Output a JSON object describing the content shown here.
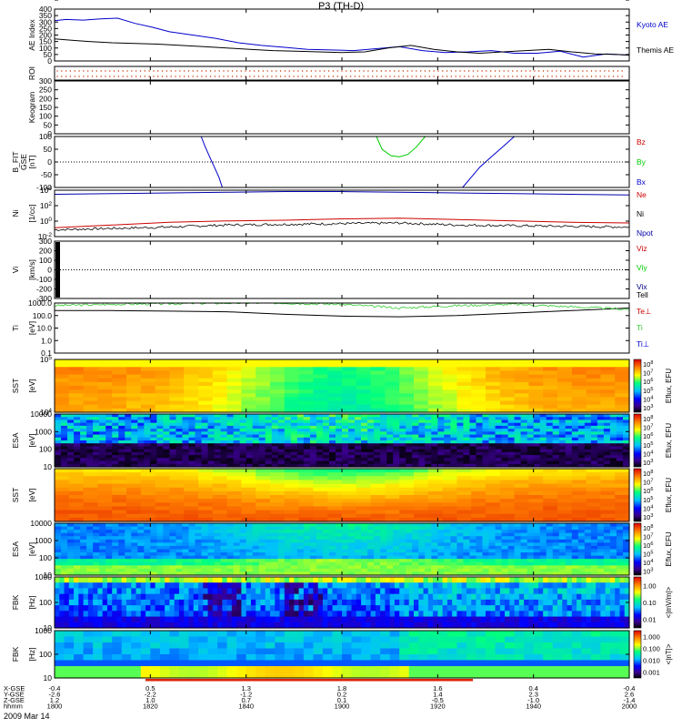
{
  "title": "P3 (TH-D)",
  "date": "2009 Mar 14",
  "colors": {
    "kyoto": "#0000cc",
    "themis": "#000000",
    "bz": "#cc0000",
    "by": "#00cc00",
    "bx": "#0000cc",
    "ne": "#cc0000",
    "ni": "#000000",
    "npot": "#0000aa",
    "te": "#000000",
    "ti": "#33cc33"
  },
  "chart_data": {
    "type": "line",
    "x": {
      "labels": [
        "1800",
        "1820",
        "1840",
        "1900",
        "1920",
        "1940",
        "2000"
      ]
    },
    "panels": [
      {
        "id": "ae",
        "ylabel": "AE Index",
        "ylim": [
          0,
          400
        ],
        "yticks": [
          "0",
          "50",
          "100",
          "150",
          "200",
          "250",
          "300",
          "350",
          "400"
        ],
        "legend": [
          "Kyoto AE",
          "Themis AE"
        ],
        "series": [
          {
            "name": "Kyoto AE",
            "color": "#0000cc",
            "x": [
              0.0,
              0.02,
              0.05,
              0.08,
              0.11,
              0.14,
              0.17,
              0.2,
              0.24,
              0.28,
              0.32,
              0.36,
              0.4,
              0.44,
              0.48,
              0.52,
              0.56,
              0.6,
              0.64,
              0.68,
              0.72,
              0.76,
              0.8,
              0.84,
              0.88,
              0.92,
              0.96,
              1.0
            ],
            "y": [
              310,
              320,
              315,
              325,
              330,
              290,
              260,
              225,
              200,
              175,
              140,
              120,
              105,
              90,
              85,
              80,
              95,
              110,
              80,
              65,
              70,
              80,
              60,
              60,
              75,
              30,
              55,
              45
            ]
          },
          {
            "name": "Themis AE",
            "color": "#000000",
            "x": [
              0.0,
              0.03,
              0.06,
              0.1,
              0.14,
              0.18,
              0.22,
              0.26,
              0.3,
              0.34,
              0.38,
              0.42,
              0.46,
              0.5,
              0.54,
              0.58,
              0.62,
              0.66,
              0.7,
              0.74,
              0.78,
              0.82,
              0.86,
              0.9,
              0.94,
              0.98,
              1.0
            ],
            "y": [
              170,
              160,
              150,
              140,
              135,
              130,
              120,
              110,
              100,
              90,
              80,
              75,
              70,
              65,
              70,
              100,
              120,
              90,
              70,
              60,
              70,
              80,
              90,
              70,
              55,
              50,
              45
            ]
          }
        ]
      },
      {
        "id": "roi",
        "ylabel": "ROI"
      },
      {
        "id": "keogram",
        "ylabel": "Keogram",
        "ylim": [
          0,
          300
        ],
        "yticks": [
          "0",
          "50",
          "100",
          "150",
          "200",
          "250",
          "300"
        ]
      },
      {
        "id": "bfit",
        "ylabel": "B_FIT",
        "ylabel2": "GSE",
        "ylabel3": "[nT]",
        "ylim": [
          -100,
          100
        ],
        "yticks": [
          "-100",
          "-50",
          "0",
          "50",
          "100"
        ],
        "legend": [
          "Bz",
          "By",
          "Bx"
        ],
        "series": [
          {
            "name": "Bx",
            "color": "#0000cc",
            "x": [
              0.255,
              0.262,
              0.27,
              0.278,
              0.286,
              0.292
            ],
            "y": [
              100,
              60,
              20,
              -20,
              -60,
              -100
            ]
          },
          {
            "name": "By",
            "color": "#00cc00",
            "x": [
              0.56,
              0.57,
              0.585,
              0.6,
              0.615,
              0.63,
              0.645
            ],
            "y": [
              100,
              50,
              25,
              20,
              30,
              60,
              100
            ]
          },
          {
            "name": "Bx",
            "color": "#0000cc",
            "x": [
              0.71,
              0.725,
              0.74,
              0.76,
              0.78,
              0.8
            ],
            "y": [
              -100,
              -60,
              -20,
              20,
              60,
              100
            ]
          }
        ]
      },
      {
        "id": "ni",
        "ylabel": "Ni",
        "ylabel2": "[1/cc]",
        "yticks": [
          "10^-2",
          "10^0",
          "10^2",
          "10^4"
        ],
        "legend": [
          "Ne",
          "Ni",
          "Npot"
        ],
        "series": [
          {
            "name": "Npot",
            "color": "#0000aa",
            "x": [
              0.0,
              0.1,
              0.2,
              0.3,
              0.4,
              0.5,
              0.6,
              0.7,
              0.8,
              0.9,
              1.0
            ],
            "y": [
              4.0,
              4.1,
              4.2,
              4.3,
              4.4,
              4.4,
              4.3,
              4.2,
              4.1,
              4.0,
              3.9
            ]
          },
          {
            "name": "Ne",
            "color": "#cc0000",
            "x": [
              0.0,
              0.1,
              0.2,
              0.3,
              0.4,
              0.5,
              0.6,
              0.7,
              0.8,
              0.9,
              1.0
            ],
            "y": [
              -0.9,
              -0.5,
              -0.1,
              0.1,
              0.2,
              0.4,
              0.5,
              0.3,
              0.1,
              -0.1,
              -0.2
            ]
          },
          {
            "name": "Ni",
            "color": "#000000",
            "x": [
              0.0,
              0.1,
              0.2,
              0.3,
              0.4,
              0.5,
              0.6,
              0.7,
              0.8,
              0.9,
              1.0
            ],
            "y": [
              -1.2,
              -1.0,
              -0.8,
              -0.5,
              -0.4,
              -0.3,
              -0.2,
              -0.5,
              -0.6,
              -0.7,
              -0.8
            ]
          }
        ]
      },
      {
        "id": "vi",
        "ylabel": "Vi",
        "ylabel2": "[km/s]",
        "ylim": [
          -300,
          300
        ],
        "yticks": [
          "-300",
          "-200",
          "-100",
          "0",
          "100",
          "200",
          "300"
        ],
        "legend": [
          "Viz",
          "Viy",
          "Vix"
        ]
      },
      {
        "id": "te",
        "ylabel": "Ti",
        "ylabel2": "[eV]",
        "yticks": [
          "0.1",
          "1.0",
          "10.0",
          "100.0",
          "1000.0"
        ],
        "legend": [
          "Tell",
          "Te⊥",
          "Ti",
          "Ti⊥"
        ],
        "series": [
          {
            "name": "Ti",
            "color": "#33cc33",
            "x": [
              0.0,
              0.1,
              0.2,
              0.3,
              0.4,
              0.5,
              0.6,
              0.7,
              0.8,
              0.9,
              1.0
            ],
            "y": [
              2.8,
              2.9,
              2.95,
              3.0,
              3.0,
              2.9,
              2.6,
              2.8,
              2.9,
              2.7,
              2.5
            ]
          },
          {
            "name": "Te",
            "color": "#000000",
            "x": [
              0.0,
              0.1,
              0.2,
              0.3,
              0.4,
              0.5,
              0.6,
              0.7,
              0.8,
              0.9,
              1.0
            ],
            "y": [
              2.4,
              2.4,
              2.35,
              2.3,
              2.1,
              1.95,
              1.9,
              2.0,
              2.2,
              2.4,
              2.6
            ]
          }
        ]
      },
      {
        "id": "sst_i",
        "ylabel": "SST",
        "ylabel2": "[eV]",
        "yticks": [
          "10^4",
          "10^5"
        ],
        "cbar_label": "Eflux, EFU",
        "cbar_ticks": [
          "10^3",
          "10^4",
          "10^5",
          "10^6",
          "10^7",
          "10^8"
        ]
      },
      {
        "id": "esa_i",
        "ylabel": "ESA",
        "ylabel2": "[eV]",
        "yticks": [
          "10",
          "100",
          "1000",
          "10000"
        ],
        "cbar_label": "Eflux, EFU",
        "cbar_ticks": [
          "10^3",
          "10^4",
          "10^5",
          "10^6",
          "10^7",
          "10^8"
        ]
      },
      {
        "id": "sst_e",
        "ylabel": "SST",
        "ylabel2": "[eV]",
        "yticks": [
          "10^5"
        ],
        "cbar_label": "Eflux, EFU",
        "cbar_ticks": [
          "10^3",
          "10^4",
          "10^5",
          "10^6",
          "10^7",
          "10^8"
        ]
      },
      {
        "id": "esa_e",
        "ylabel": "ESA",
        "ylabel2": "[eV]",
        "yticks": [
          "10",
          "100",
          "1000",
          "10000"
        ],
        "cbar_label": "Eflux, EFU",
        "cbar_ticks": [
          "10^3",
          "10^4",
          "10^5",
          "10^6",
          "10^7",
          "10^8"
        ]
      },
      {
        "id": "fbk_e",
        "ylabel": "FBK",
        "ylabel2": "[Hz]",
        "yticks": [
          "10",
          "100",
          "1000"
        ],
        "cbar_label": "<|mV/m|>",
        "cbar_ticks": [
          "0.01",
          "0.10",
          "1.00"
        ]
      },
      {
        "id": "fbk_b",
        "ylabel": "FBK",
        "ylabel2": "[Hz]",
        "yticks": [
          "10",
          "100",
          "1000"
        ],
        "cbar_label": "<|nT|>",
        "cbar_ticks": [
          "0.001",
          "0.010",
          "0.100",
          "1.000"
        ]
      }
    ],
    "orbit": {
      "row_labels": [
        "X-GSE",
        "Y-GSE",
        "Z-GSE",
        "hhmm"
      ],
      "columns": [
        [
          "-0.4",
          "-2.6",
          "1.2",
          "1800"
        ],
        [
          "0.5",
          "-2.2",
          "1.0",
          "1820"
        ],
        [
          "1.3",
          "-1.2",
          "0.7",
          "1840"
        ],
        [
          "1.8",
          "0.2",
          "0.1",
          "1900"
        ],
        [
          "1.6",
          "1.4",
          "-0.5",
          "1920"
        ],
        [
          "0.4",
          "2.3",
          "-1.0",
          "1940"
        ],
        [
          "-0.4",
          "2.6",
          "-1.4",
          "2000"
        ]
      ]
    }
  }
}
